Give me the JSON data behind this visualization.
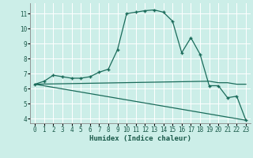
{
  "xlabel": "Humidex (Indice chaleur)",
  "xlim": [
    -0.5,
    23.5
  ],
  "ylim": [
    3.7,
    11.7
  ],
  "yticks": [
    4,
    5,
    6,
    7,
    8,
    9,
    10,
    11
  ],
  "xticks": [
    0,
    1,
    2,
    3,
    4,
    5,
    6,
    7,
    8,
    9,
    10,
    11,
    12,
    13,
    14,
    15,
    16,
    17,
    18,
    19,
    20,
    21,
    22,
    23
  ],
  "background_color": "#cceee8",
  "grid_color": "#ffffff",
  "line_color": "#1a6b5a",
  "curve1_x": [
    0,
    1,
    2,
    3,
    4,
    5,
    6,
    7,
    8,
    9,
    10,
    11,
    12,
    13,
    14,
    15,
    16,
    17,
    18,
    19,
    20,
    21,
    22,
    23
  ],
  "curve1_y": [
    6.3,
    6.5,
    6.9,
    6.8,
    6.7,
    6.7,
    6.8,
    7.1,
    7.3,
    8.6,
    11.0,
    11.1,
    11.2,
    11.25,
    11.1,
    10.5,
    8.4,
    9.4,
    8.3,
    6.2,
    6.2,
    5.4,
    5.5,
    3.9
  ],
  "curve2_x": [
    0,
    19,
    20,
    21,
    22,
    23
  ],
  "curve2_y": [
    6.3,
    6.5,
    6.4,
    6.4,
    6.3,
    6.3
  ],
  "curve3_x": [
    0,
    23
  ],
  "curve3_y": [
    6.3,
    3.9
  ]
}
